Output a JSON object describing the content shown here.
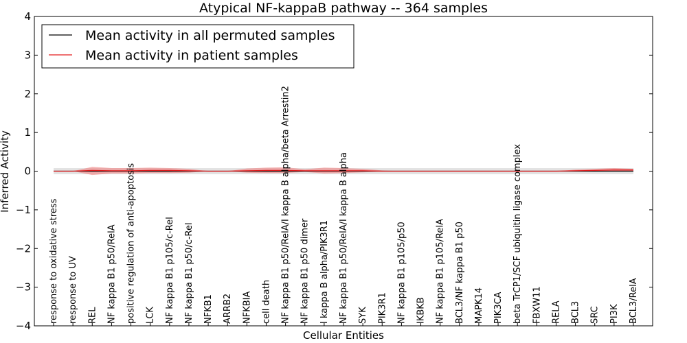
{
  "chart_data": {
    "type": "line",
    "title": "Atypical NF-kappaB pathway -- 364 samples",
    "xlabel": "Cellular Entities",
    "ylabel": "Inferred Activity",
    "ylim": [
      -4,
      4
    ],
    "yticks": [
      4,
      3,
      2,
      1,
      0,
      -1,
      -2,
      -3,
      -4
    ],
    "ytick_labels": [
      "4",
      "3",
      "2",
      "1",
      "0",
      "−1",
      "−2",
      "−3",
      "−4"
    ],
    "grid": false,
    "legend_position": "top-left",
    "categories": [
      "response to oxidative stress",
      "response to UV",
      "REL",
      "NF kappa B1 p50/RelA",
      "positive regulation of anti-apoptosis",
      "LCK",
      "NF kappa B1 p105/c-Rel",
      "NF kappa B1 p50/c-Rel",
      "NFKB1",
      "ARRB2",
      "NFKBIA",
      "cell death",
      "NF kappa B1 p50/RelA/I kappa B alpha/beta Arrestin2",
      "NF kappa B1 p50 dimer",
      "I kappa B alpha/PIK3R1",
      "NF kappa B1 p50/RelA/I kappa B alpha",
      "SYK",
      "PIK3R1",
      "NF kappa B1 p105/p50",
      "IKBKB",
      "NF kappa B1 p105/RelA",
      "BCL3/NF kappa B1 p50",
      "MAPK14",
      "PIK3CA",
      "beta TrCP1/SCF ubiquitin ligase complex",
      "FBXW11",
      "RELA",
      "BCL3",
      "SRC",
      "PI3K",
      "BCL3/RelA"
    ],
    "series": [
      {
        "name": "Mean activity in all permuted samples",
        "color": "#000000",
        "values": [
          0,
          0,
          0,
          0,
          0,
          0,
          0,
          0,
          0,
          0,
          0,
          0,
          0,
          0,
          0,
          0,
          0,
          0,
          0,
          0,
          0,
          0,
          0,
          0,
          0,
          0,
          0,
          0,
          0,
          0,
          0
        ],
        "band_lower": [
          -0.08,
          -0.08,
          -0.08,
          -0.08,
          -0.08,
          -0.08,
          -0.08,
          -0.08,
          -0.08,
          -0.08,
          -0.08,
          -0.08,
          -0.08,
          -0.08,
          -0.08,
          -0.08,
          -0.08,
          -0.08,
          -0.08,
          -0.08,
          -0.08,
          -0.08,
          -0.08,
          -0.08,
          -0.08,
          -0.08,
          -0.08,
          -0.08,
          -0.08,
          -0.08,
          -0.08
        ],
        "band_upper": [
          0.08,
          0.08,
          0.08,
          0.08,
          0.08,
          0.08,
          0.08,
          0.08,
          0.08,
          0.08,
          0.08,
          0.08,
          0.08,
          0.08,
          0.08,
          0.08,
          0.08,
          0.08,
          0.08,
          0.08,
          0.08,
          0.08,
          0.08,
          0.08,
          0.08,
          0.08,
          0.08,
          0.08,
          0.08,
          0.08,
          0.08
        ],
        "band_color": "#d9d9d9"
      },
      {
        "name": "Mean activity in patient samples",
        "color": "#e41a1c",
        "values": [
          0,
          0,
          0.02,
          0.01,
          0.01,
          0.02,
          0.02,
          0.01,
          0,
          0,
          0.01,
          0.02,
          0.02,
          0.01,
          0.01,
          0.01,
          0.01,
          0,
          0,
          0,
          0,
          0,
          0,
          0,
          0,
          0,
          0,
          0.01,
          0.02,
          0.03,
          0.03
        ],
        "band_lower": [
          0,
          0,
          -0.1,
          -0.06,
          -0.06,
          -0.05,
          -0.05,
          -0.04,
          0,
          0,
          -0.04,
          -0.05,
          -0.05,
          -0.02,
          -0.06,
          -0.05,
          -0.03,
          -0.01,
          0,
          0,
          0,
          0,
          0,
          0,
          0,
          0,
          0,
          -0.01,
          -0.01,
          0,
          0
        ],
        "band_upper": [
          0,
          0,
          0.11,
          0.08,
          0.08,
          0.09,
          0.08,
          0.06,
          0,
          0,
          0.07,
          0.09,
          0.1,
          0.05,
          0.09,
          0.08,
          0.06,
          0.02,
          0,
          0,
          0,
          0,
          0,
          0,
          0,
          0,
          0,
          0.04,
          0.06,
          0.08,
          0.06
        ],
        "band_color": "#f08080"
      }
    ]
  }
}
